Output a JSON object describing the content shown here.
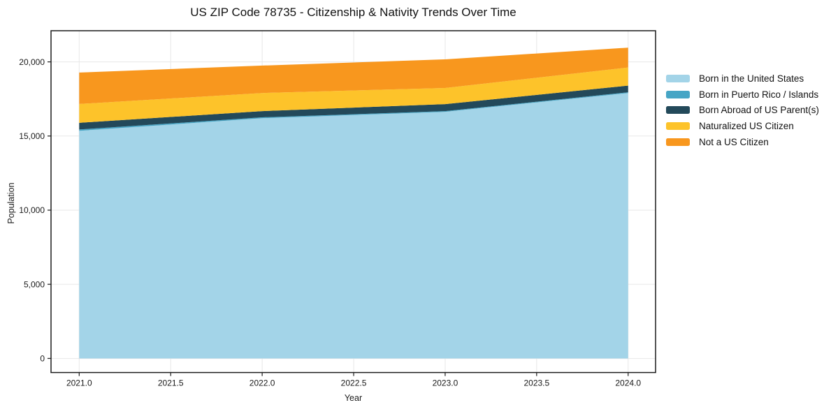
{
  "chart_data": {
    "type": "area",
    "stacked": true,
    "title": "US ZIP Code 78735 - Citizenship & Nativity Trends Over Time",
    "xlabel": "Year",
    "ylabel": "Population",
    "x": [
      2021,
      2022,
      2023,
      2024
    ],
    "series": [
      {
        "name": "Born in the United States",
        "color": "#a3d4e8",
        "values": [
          15350,
          16200,
          16630,
          17900
        ]
      },
      {
        "name": "Born in Puerto Rico / Islands",
        "color": "#46a5c5",
        "values": [
          90,
          60,
          50,
          50
        ]
      },
      {
        "name": "Born Abroad of US Parent(s)",
        "color": "#23495a",
        "values": [
          450,
          420,
          470,
          450
        ]
      },
      {
        "name": "Naturalized US Citizen",
        "color": "#fdc32a",
        "values": [
          1270,
          1220,
          1090,
          1220
        ]
      },
      {
        "name": "Not a US Citizen",
        "color": "#f8971e",
        "values": [
          2120,
          1850,
          1930,
          1340
        ]
      }
    ],
    "xlim": [
      2020.846,
      2024.15
    ],
    "ylim": [
      -950,
      22100
    ],
    "x_ticks": [
      {
        "value": 2021.0,
        "label": "2021.0"
      },
      {
        "value": 2021.5,
        "label": "2021.5"
      },
      {
        "value": 2022.0,
        "label": "2022.0"
      },
      {
        "value": 2022.5,
        "label": "2022.5"
      },
      {
        "value": 2023.0,
        "label": "2023.0"
      },
      {
        "value": 2023.5,
        "label": "2023.5"
      },
      {
        "value": 2024.0,
        "label": "2024.0"
      }
    ],
    "y_ticks": [
      {
        "value": 0,
        "label": "0"
      },
      {
        "value": 5000,
        "label": "5,000"
      },
      {
        "value": 10000,
        "label": "10,000"
      },
      {
        "value": 15000,
        "label": "15,000"
      },
      {
        "value": 20000,
        "label": "20,000"
      }
    ],
    "grid": true,
    "legend_position": "right",
    "grid_color": "#e7e7e7",
    "axis_color": "#1a1a1a"
  }
}
